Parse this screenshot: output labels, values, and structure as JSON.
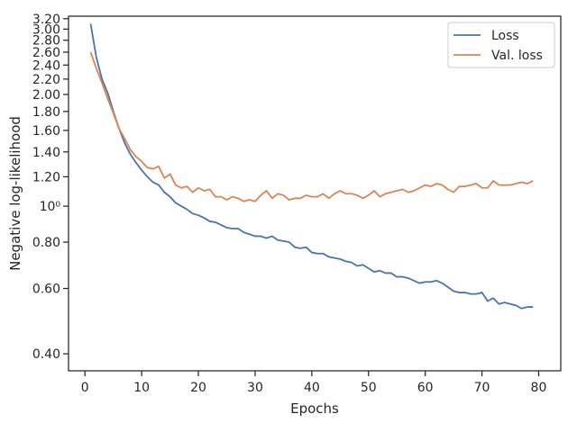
{
  "chart_data": {
    "type": "line",
    "title": "",
    "xlabel": "Epochs",
    "ylabel": "Negative log-likelihood",
    "xlim": [
      -2.9,
      83.9
    ],
    "ylim": [
      0.36,
      3.25
    ],
    "yscale": "log",
    "grid": false,
    "legend_position": "top-right",
    "x_ticks": [
      0,
      10,
      20,
      30,
      40,
      50,
      60,
      70,
      80
    ],
    "x_tick_labels": [
      "0",
      "10",
      "20",
      "30",
      "40",
      "50",
      "60",
      "70",
      "80"
    ],
    "y_ticks": [
      0.4,
      0.6,
      0.8,
      1.0,
      1.2,
      1.4,
      1.6,
      1.8,
      2.0,
      2.2,
      2.4,
      2.6,
      2.8,
      3.0,
      3.2
    ],
    "y_tick_labels": [
      "0.40",
      "0.60",
      "0.80",
      "10⁰",
      "1.20",
      "1.40",
      "1.60",
      "1.80",
      "2.00",
      "2.20",
      "2.40",
      "2.60",
      "2.80",
      "3.00",
      "3.20"
    ],
    "x": [
      1,
      2,
      3,
      4,
      5,
      6,
      7,
      8,
      9,
      10,
      11,
      12,
      13,
      14,
      15,
      16,
      17,
      18,
      19,
      20,
      21,
      22,
      23,
      24,
      25,
      26,
      27,
      28,
      29,
      30,
      31,
      32,
      33,
      34,
      35,
      36,
      37,
      38,
      39,
      40,
      41,
      42,
      43,
      44,
      45,
      46,
      47,
      48,
      49,
      50,
      51,
      52,
      53,
      54,
      55,
      56,
      57,
      58,
      59,
      60,
      61,
      62,
      63,
      64,
      65,
      66,
      67,
      68,
      69,
      70,
      71,
      72,
      73,
      74,
      75,
      76,
      77,
      78,
      79
    ],
    "series": [
      {
        "name": "Loss",
        "color": "#4c72b0",
        "values": [
          3.1,
          2.52,
          2.2,
          2.02,
          1.8,
          1.62,
          1.48,
          1.38,
          1.31,
          1.25,
          1.2,
          1.16,
          1.14,
          1.09,
          1.06,
          1.02,
          1.0,
          0.98,
          0.955,
          0.945,
          0.93,
          0.91,
          0.905,
          0.89,
          0.875,
          0.87,
          0.87,
          0.85,
          0.84,
          0.83,
          0.83,
          0.82,
          0.83,
          0.81,
          0.805,
          0.8,
          0.775,
          0.77,
          0.775,
          0.75,
          0.745,
          0.745,
          0.73,
          0.725,
          0.72,
          0.71,
          0.705,
          0.69,
          0.695,
          0.68,
          0.665,
          0.67,
          0.66,
          0.66,
          0.645,
          0.645,
          0.64,
          0.63,
          0.62,
          0.625,
          0.625,
          0.63,
          0.62,
          0.605,
          0.59,
          0.585,
          0.585,
          0.58,
          0.58,
          0.585,
          0.555,
          0.565,
          0.545,
          0.55,
          0.545,
          0.54,
          0.53,
          0.535,
          0.535
        ]
      },
      {
        "name": "Val. loss",
        "color": "#dd8452",
        "values": [
          2.6,
          2.35,
          2.15,
          1.95,
          1.78,
          1.62,
          1.52,
          1.42,
          1.36,
          1.32,
          1.27,
          1.26,
          1.28,
          1.19,
          1.22,
          1.14,
          1.12,
          1.13,
          1.09,
          1.12,
          1.1,
          1.11,
          1.06,
          1.06,
          1.04,
          1.06,
          1.05,
          1.03,
          1.04,
          1.03,
          1.07,
          1.1,
          1.05,
          1.08,
          1.07,
          1.04,
          1.05,
          1.05,
          1.07,
          1.06,
          1.06,
          1.08,
          1.05,
          1.08,
          1.1,
          1.08,
          1.08,
          1.07,
          1.05,
          1.07,
          1.1,
          1.06,
          1.08,
          1.09,
          1.1,
          1.11,
          1.09,
          1.1,
          1.12,
          1.14,
          1.13,
          1.15,
          1.14,
          1.11,
          1.09,
          1.13,
          1.13,
          1.14,
          1.15,
          1.12,
          1.12,
          1.17,
          1.14,
          1.14,
          1.14,
          1.15,
          1.16,
          1.15,
          1.17
        ]
      }
    ]
  }
}
